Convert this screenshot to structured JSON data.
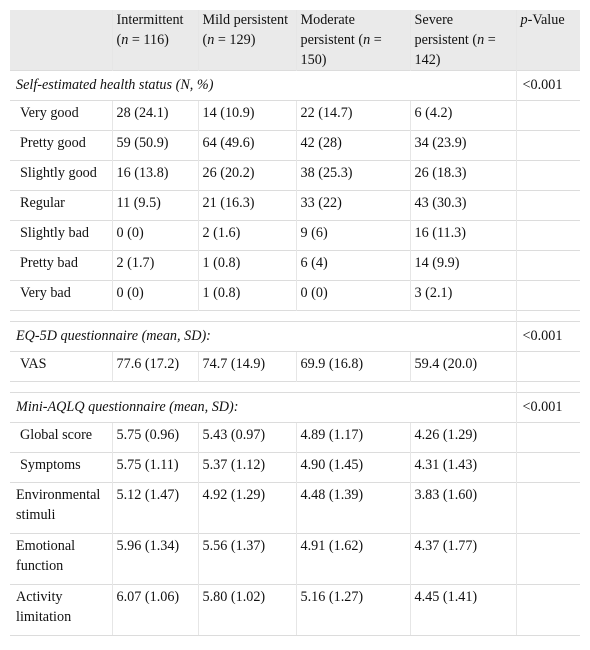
{
  "header": {
    "col1": [
      "Intermittent",
      "(n = 116)"
    ],
    "col2": [
      "Mild persistent",
      "(n = 129)"
    ],
    "col3": [
      "Moderate",
      "persistent (n =",
      "150)"
    ],
    "col4": [
      "Severe",
      "persistent (n =",
      "142)"
    ],
    "pvalue": [
      "p",
      "-Value"
    ]
  },
  "sections": [
    {
      "title": "Self-estimated health status (N, %)",
      "p": "<0.001",
      "rows": [
        {
          "label": "Very good",
          "v": [
            "28 (24.1)",
            "14 (10.9)",
            "22 (14.7)",
            "6 (4.2)"
          ]
        },
        {
          "label": "Pretty good",
          "v": [
            "59 (50.9)",
            "64 (49.6)",
            "42 (28)",
            "34 (23.9)"
          ]
        },
        {
          "label": "Slightly good",
          "v": [
            "16 (13.8)",
            "26 (20.2)",
            "38 (25.3)",
            "26 (18.3)"
          ]
        },
        {
          "label": "Regular",
          "v": [
            "11 (9.5)",
            "21 (16.3)",
            "33 (22)",
            "43 (30.3)"
          ]
        },
        {
          "label": "Slightly bad",
          "v": [
            "0 (0)",
            "2 (1.6)",
            "9 (6)",
            "16 (11.3)"
          ]
        },
        {
          "label": "Pretty bad",
          "v": [
            "2 (1.7)",
            "1 (0.8)",
            "6 (4)",
            "14 (9.9)"
          ]
        },
        {
          "label": "Very bad",
          "v": [
            "0 (0)",
            "1 (0.8)",
            "0 (0)",
            "3 (2.1)"
          ]
        }
      ]
    },
    {
      "title": "EQ-5D questionnaire (mean, SD):",
      "p": "<0.001",
      "rows": [
        {
          "label": "VAS",
          "v": [
            "77.6 (17.2)",
            "74.7 (14.9)",
            "69.9 (16.8)",
            "59.4 (20.0)"
          ]
        }
      ]
    },
    {
      "title": "Mini-AQLQ questionnaire (mean, SD):",
      "p": "<0.001",
      "rows": [
        {
          "label": "Global score",
          "v": [
            "5.75 (0.96)",
            "5.43 (0.97)",
            "4.89 (1.17)",
            "4.26 (1.29)"
          ]
        },
        {
          "label": "Symptoms",
          "v": [
            "5.75 (1.11)",
            "5.37 (1.12)",
            "4.90 (1.45)",
            "4.31 (1.43)"
          ]
        },
        {
          "label": "Environmental stimuli",
          "v": [
            "5.12 (1.47)",
            "4.92 (1.29)",
            "4.48 (1.39)",
            "3.83 (1.60)"
          ],
          "tall": true
        },
        {
          "label": " Emotional function",
          "v": [
            "5.96 (1.34)",
            "5.56 (1.37)",
            "4.91 (1.62)",
            "4.37 (1.77)"
          ],
          "tall": true
        },
        {
          "label": " Activity limitation",
          "v": [
            "6.07 (1.06)",
            "5.80 (1.02)",
            "5.16 (1.27)",
            "4.45 (1.41)"
          ],
          "tall": true
        }
      ]
    }
  ]
}
